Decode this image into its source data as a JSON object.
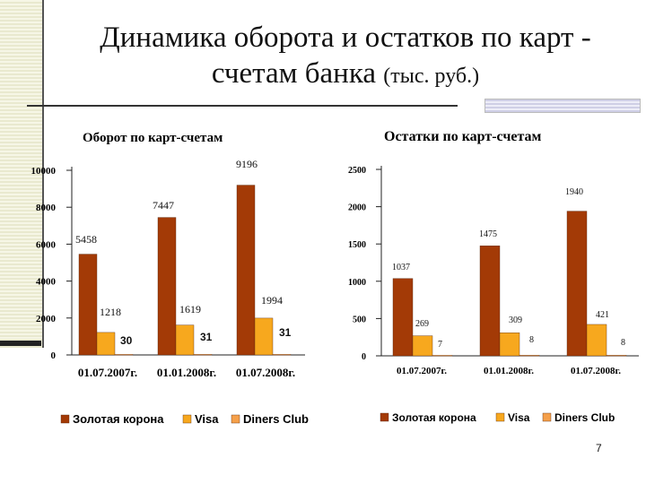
{
  "slide": {
    "title_line1": "Динамика оборота и остатков по карт -",
    "title_line2": "счетам банка",
    "title_unit": "(тыс. руб.)",
    "page_number": "7"
  },
  "colors": {
    "zolotaya_korona": "#a33a06",
    "visa": "#f7a81e",
    "diners_club": "#f5a04a"
  },
  "chart_data": [
    {
      "type": "bar",
      "title": "Оборот по карт-счетам",
      "categories": [
        "01.07.2007г.",
        "01.01.2008г.",
        "01.07.2008г."
      ],
      "ylim": [
        0,
        10000
      ],
      "yticks": [
        0,
        2000,
        4000,
        6000,
        8000,
        10000
      ],
      "ytick_labels": [
        "0",
        "2000",
        "4000",
        "6000",
        "8000",
        "10000"
      ],
      "legend_position": "bottom",
      "series": [
        {
          "name": "Золотая корона",
          "values": [
            5458,
            7447,
            9196
          ],
          "labels": [
            "5458",
            "7447",
            "9196"
          ]
        },
        {
          "name": "Visa",
          "values": [
            1218,
            1619,
            1994
          ],
          "labels": [
            "1218",
            "1619",
            "1994"
          ]
        },
        {
          "name": "Diners Club",
          "values": [
            30,
            31,
            31
          ],
          "labels": [
            "30",
            "31",
            "31"
          ]
        }
      ]
    },
    {
      "type": "bar",
      "title": "Остатки по карт-счетам",
      "categories": [
        "01.07.2007г.",
        "01.01.2008г.",
        "01.07.2008г."
      ],
      "ylim": [
        0,
        2500
      ],
      "yticks": [
        0,
        500,
        1000,
        1500,
        2000,
        2500
      ],
      "ytick_labels": [
        "0",
        "500",
        "1000",
        "1500",
        "2000",
        "2500"
      ],
      "legend_position": "bottom",
      "series": [
        {
          "name": "Золотая корона",
          "values": [
            1037,
            1475,
            1940
          ],
          "labels": [
            "1037",
            "1475",
            "1940"
          ]
        },
        {
          "name": "Visa",
          "values": [
            269,
            309,
            421
          ],
          "labels": [
            "269",
            "309",
            "421"
          ]
        },
        {
          "name": "Diners Club",
          "values": [
            7,
            8,
            8
          ],
          "labels": [
            "7",
            "8",
            "8"
          ]
        }
      ]
    }
  ]
}
